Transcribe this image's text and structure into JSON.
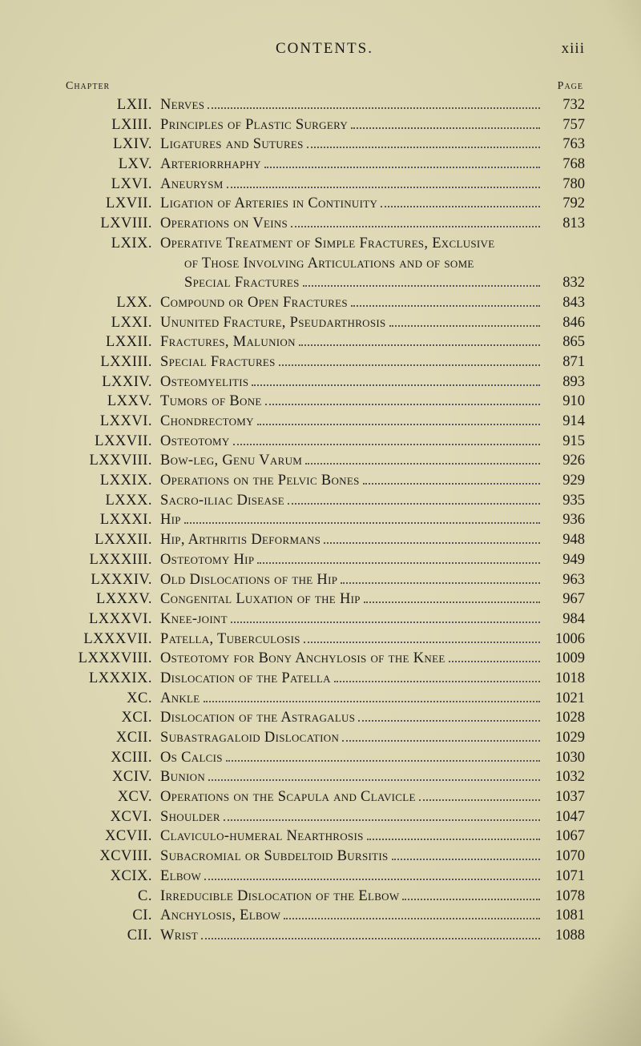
{
  "header": {
    "title": "CONTENTS.",
    "page_number_roman": "xiii"
  },
  "column_headers": {
    "left": "Chapter",
    "right": "Page"
  },
  "entries": [
    {
      "num": "LXII.",
      "title": "Nerves",
      "page": "732"
    },
    {
      "num": "LXIII.",
      "title": "Principles of Plastic Surgery",
      "page": "757"
    },
    {
      "num": "LXIV.",
      "title": "Ligatures and Sutures",
      "page": "763"
    },
    {
      "num": "LXV.",
      "title": "Arteriorrhaphy",
      "page": "768"
    },
    {
      "num": "LXVI.",
      "title": "Aneurysm",
      "page": "780"
    },
    {
      "num": "LXVII.",
      "title": "Ligation of Arteries in Continuity",
      "page": "792"
    },
    {
      "num": "LXVIII.",
      "title": "Operations on Veins",
      "page": "813"
    },
    {
      "num": "LXIX.",
      "title": "Operative Treatment of Simple Fractures, Exclusive",
      "page": "",
      "continuation": [
        {
          "text": "of Those Involving Articulations and of some",
          "page": ""
        },
        {
          "text": "Special Fractures",
          "page": "832"
        }
      ]
    },
    {
      "num": "LXX.",
      "title": "Compound or Open Fractures",
      "page": "843"
    },
    {
      "num": "LXXI.",
      "title": "Ununited Fracture, Pseudarthrosis",
      "page": "846"
    },
    {
      "num": "LXXII.",
      "title": "Fractures, Malunion",
      "page": "865"
    },
    {
      "num": "LXXIII.",
      "title": "Special Fractures",
      "page": "871"
    },
    {
      "num": "LXXIV.",
      "title": "Osteomyelitis",
      "page": "893"
    },
    {
      "num": "LXXV.",
      "title": "Tumors of Bone",
      "page": "910"
    },
    {
      "num": "LXXVI.",
      "title": "Chondrectomy",
      "page": "914"
    },
    {
      "num": "LXXVII.",
      "title": "Osteotomy",
      "page": "915"
    },
    {
      "num": "LXXVIII.",
      "title": "Bow-leg, Genu Varum",
      "page": "926"
    },
    {
      "num": "LXXIX.",
      "title": "Operations on the Pelvic Bones",
      "page": "929"
    },
    {
      "num": "LXXX.",
      "title": "Sacro-iliac Disease",
      "page": "935"
    },
    {
      "num": "LXXXI.",
      "title": "Hip",
      "page": "936"
    },
    {
      "num": "LXXXII.",
      "title": "Hip, Arthritis Deformans",
      "page": "948"
    },
    {
      "num": "LXXXIII.",
      "title": "Osteotomy Hip",
      "page": "949"
    },
    {
      "num": "LXXXIV.",
      "title": "Old Dislocations of the Hip",
      "page": "963"
    },
    {
      "num": "LXXXV.",
      "title": "Congenital Luxation of the Hip",
      "page": "967"
    },
    {
      "num": "LXXXVI.",
      "title": "Knee-joint",
      "page": "984"
    },
    {
      "num": "LXXXVII.",
      "title": "Patella, Tuberculosis",
      "page": "1006"
    },
    {
      "num": "LXXXVIII.",
      "title": "Osteotomy for Bony Anchylosis of the Knee",
      "page": "1009"
    },
    {
      "num": "LXXXIX.",
      "title": "Dislocation of the Patella",
      "page": "1018"
    },
    {
      "num": "XC.",
      "title": "Ankle",
      "page": "1021"
    },
    {
      "num": "XCI.",
      "title": "Dislocation of the Astragalus",
      "page": "1028"
    },
    {
      "num": "XCII.",
      "title": "Subastragaloid Dislocation",
      "page": "1029"
    },
    {
      "num": "XCIII.",
      "title": "Os Calcis",
      "page": "1030"
    },
    {
      "num": "XCIV.",
      "title": "Bunion",
      "page": "1032"
    },
    {
      "num": "XCV.",
      "title": "Operations on the Scapula and Clavicle",
      "page": "1037"
    },
    {
      "num": "XCVI.",
      "title": "Shoulder",
      "page": "1047"
    },
    {
      "num": "XCVII.",
      "title": "Claviculo-humeral Nearthrosis",
      "page": "1067"
    },
    {
      "num": "XCVIII.",
      "title": "Subacromial or Subdeltoid Bursitis",
      "page": "1070"
    },
    {
      "num": "XCIX.",
      "title": "Elbow",
      "page": "1071"
    },
    {
      "num": "C.",
      "title": "Irreducible Dislocation of the Elbow",
      "page": "1078"
    },
    {
      "num": "CI.",
      "title": "Anchylosis, Elbow",
      "page": "1081"
    },
    {
      "num": "CII.",
      "title": "Wrist",
      "page": "1088"
    }
  ]
}
